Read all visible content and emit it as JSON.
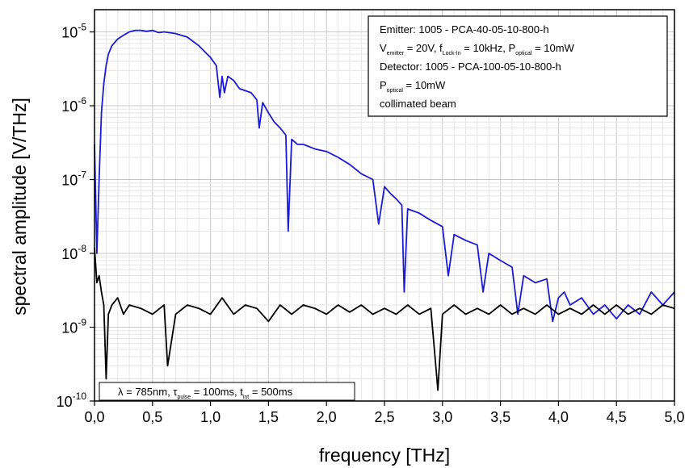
{
  "chart_data": {
    "type": "line",
    "xlabel": "frequency [THz]",
    "ylabel": "spectral amplitude [V/THz]",
    "xlim": [
      0,
      5
    ],
    "ylim": [
      1e-10,
      2e-05
    ],
    "y_scale": "log",
    "grid": true,
    "x_ticks": [
      "0,0",
      "0,5",
      "1,0",
      "1,5",
      "2,0",
      "2,5",
      "3,0",
      "3,5",
      "4,0",
      "4,5",
      "5,0"
    ],
    "y_ticks": [
      {
        "base": "10",
        "exp": "-10",
        "value": 1e-10
      },
      {
        "base": "10",
        "exp": "-9",
        "value": 1e-09
      },
      {
        "base": "10",
        "exp": "-8",
        "value": 1e-08
      },
      {
        "base": "10",
        "exp": "-7",
        "value": 1e-07
      },
      {
        "base": "10",
        "exp": "-6",
        "value": 1e-06
      },
      {
        "base": "10",
        "exp": "-5",
        "value": 1e-05
      }
    ],
    "series": [
      {
        "color": "#1a1ad8",
        "x": [
          0.0,
          0.02,
          0.04,
          0.06,
          0.08,
          0.1,
          0.12,
          0.15,
          0.2,
          0.25,
          0.3,
          0.35,
          0.4,
          0.45,
          0.5,
          0.55,
          0.6,
          0.7,
          0.8,
          0.9,
          1.0,
          1.05,
          1.08,
          1.1,
          1.12,
          1.15,
          1.2,
          1.25,
          1.3,
          1.35,
          1.4,
          1.42,
          1.45,
          1.5,
          1.55,
          1.6,
          1.65,
          1.67,
          1.7,
          1.75,
          1.8,
          1.9,
          2.0,
          2.1,
          2.2,
          2.3,
          2.4,
          2.45,
          2.5,
          2.55,
          2.6,
          2.65,
          2.67,
          2.7,
          2.8,
          2.9,
          3.0,
          3.05,
          3.1,
          3.2,
          3.3,
          3.35,
          3.4,
          3.5,
          3.6,
          3.65,
          3.7,
          3.8,
          3.9,
          3.95,
          4.0,
          4.05,
          4.1,
          4.2,
          4.3,
          4.4,
          4.5,
          4.6,
          4.7,
          4.8,
          4.9,
          5.0
        ],
        "y": [
          3e-07,
          1e-08,
          1e-07,
          8e-07,
          2e-06,
          3.5e-06,
          5e-06,
          6.5e-06,
          8e-06,
          9e-06,
          1e-05,
          1.05e-05,
          1.05e-05,
          1.02e-05,
          1.05e-05,
          9.8e-06,
          1e-05,
          9.5e-06,
          8.5e-06,
          6.5e-06,
          4.5e-06,
          3.5e-06,
          1.3e-06,
          2.5e-06,
          1.5e-06,
          2.5e-06,
          2.2e-06,
          1.7e-06,
          1.6e-06,
          1.5e-06,
          1.2e-06,
          5e-07,
          1.1e-06,
          8e-07,
          6e-07,
          5e-07,
          4e-07,
          2e-08,
          3.5e-07,
          3e-07,
          3e-07,
          2.6e-07,
          2.4e-07,
          2e-07,
          1.6e-07,
          1.2e-07,
          1e-07,
          2.5e-08,
          8e-08,
          6.5e-08,
          5.5e-08,
          4.5e-08,
          3e-09,
          4e-08,
          3.5e-08,
          2.8e-08,
          2.3e-08,
          5e-09,
          1.8e-08,
          1.5e-08,
          1.3e-08,
          3e-09,
          1e-08,
          8e-09,
          6.5e-09,
          1.5e-09,
          5e-09,
          4e-09,
          4.5e-09,
          1.2e-09,
          2.5e-09,
          3e-09,
          2e-09,
          2.5e-09,
          1.5e-09,
          2e-09,
          1.3e-09,
          2e-09,
          1.5e-09,
          3e-09,
          2e-09,
          3e-09
        ]
      },
      {
        "color": "#000000",
        "x": [
          0.0,
          0.02,
          0.04,
          0.06,
          0.08,
          0.1,
          0.12,
          0.15,
          0.2,
          0.25,
          0.3,
          0.4,
          0.5,
          0.6,
          0.63,
          0.7,
          0.8,
          0.9,
          1.0,
          1.1,
          1.2,
          1.3,
          1.4,
          1.5,
          1.6,
          1.7,
          1.8,
          1.9,
          2.0,
          2.1,
          2.2,
          2.3,
          2.4,
          2.5,
          2.6,
          2.7,
          2.8,
          2.9,
          2.96,
          3.0,
          3.1,
          3.2,
          3.3,
          3.4,
          3.5,
          3.6,
          3.7,
          3.8,
          3.9,
          4.0,
          4.1,
          4.2,
          4.3,
          4.4,
          4.5,
          4.6,
          4.7,
          4.8,
          4.9,
          5.0
        ],
        "y": [
          1.2e-08,
          4e-09,
          5e-09,
          3e-09,
          2e-09,
          2e-10,
          1.5e-09,
          2e-09,
          2.5e-09,
          1.5e-09,
          2e-09,
          1.8e-09,
          1.5e-09,
          2e-09,
          3e-10,
          1.5e-09,
          2e-09,
          1.8e-09,
          1.5e-09,
          2.5e-09,
          1.5e-09,
          2e-09,
          1.8e-09,
          1.2e-09,
          2e-09,
          1.5e-09,
          2e-09,
          1.8e-09,
          1.5e-09,
          2e-09,
          1.6e-09,
          2e-09,
          1.5e-09,
          1.8e-09,
          1.5e-09,
          2e-09,
          1.5e-09,
          1.8e-09,
          1.4e-10,
          1.5e-09,
          2e-09,
          1.5e-09,
          1.8e-09,
          1.5e-09,
          2e-09,
          1.5e-09,
          1.8e-09,
          1.5e-09,
          2e-09,
          1.5e-09,
          1.8e-09,
          1.5e-09,
          2e-09,
          1.5e-09,
          2e-09,
          1.5e-09,
          1.8e-09,
          1.5e-09,
          2e-09,
          1.8e-09
        ]
      }
    ],
    "legend": {
      "emitter": "Emitter: 1005 - PCA-40-05-10-800-h",
      "v": "V",
      "v_sub": "emitter",
      "v_val": " = 20V, f",
      "f_sub": "Lock-In",
      "f_val": " = 10kHz, P",
      "p_sub": "optical",
      "p_val": " = 10mW",
      "detector": "Detector: 1005 - PCA-100-05-10-800-h",
      "p2": "P",
      "p2_sub": "optical",
      "p2_val": " = 10mW",
      "beam": "collimated beam"
    },
    "annotation": {
      "lambda": "λ = 785nm, τ",
      "pulse_sub": "pulse",
      "pulse_val": " = 100ms, t",
      "int_sub": "int",
      "int_val": " = 500ms"
    }
  }
}
